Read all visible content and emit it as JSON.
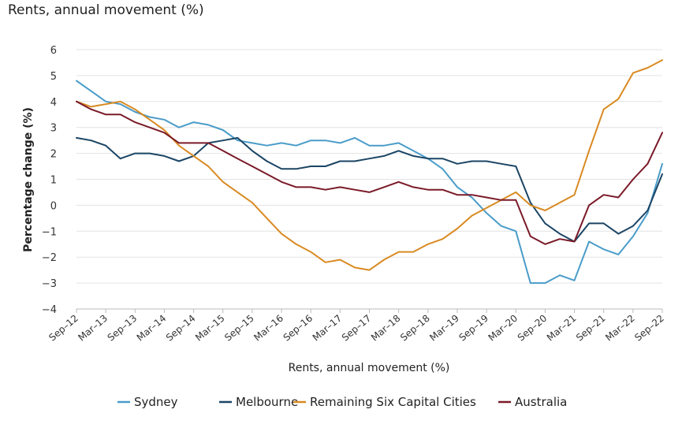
{
  "title": "Rents, annual movement (%)",
  "chart_data": {
    "type": "line",
    "title": "Rents, annual movement (%)",
    "xlabel": "Rents, annual movement (%)",
    "ylabel": "Percentage change (%)",
    "ylim": [
      -4,
      6
    ],
    "yticks": [
      6,
      5,
      4,
      3,
      2,
      1,
      0,
      -1,
      -2,
      -3,
      -4
    ],
    "grid": true,
    "legend_position": "bottom",
    "x": [
      "Sep-12",
      "Dec-12",
      "Mar-13",
      "Jun-13",
      "Sep-13",
      "Dec-13",
      "Mar-14",
      "Jun-14",
      "Sep-14",
      "Dec-14",
      "Mar-15",
      "Jun-15",
      "Sep-15",
      "Dec-15",
      "Mar-16",
      "Jun-16",
      "Sep-16",
      "Dec-16",
      "Mar-17",
      "Jun-17",
      "Sep-17",
      "Dec-17",
      "Mar-18",
      "Jun-18",
      "Sep-18",
      "Dec-18",
      "Mar-19",
      "Jun-19",
      "Sep-19",
      "Dec-19",
      "Mar-20",
      "Jun-20",
      "Sep-20",
      "Dec-20",
      "Mar-21",
      "Jun-21",
      "Sep-21",
      "Dec-21",
      "Mar-22",
      "Jun-22",
      "Sep-22"
    ],
    "xtick_labels": [
      "Sep–12",
      "Mar–13",
      "Sep–13",
      "Mar–14",
      "Sep–14",
      "Mar–15",
      "Sep–15",
      "Mar–16",
      "Sep–16",
      "Mar–17",
      "Sep–17",
      "Mar–18",
      "Sep–18",
      "Mar–19",
      "Sep–19",
      "Mar–20",
      "Sep–20",
      "Mar–21",
      "Sep–21",
      "Mar–22",
      "Sep–22"
    ],
    "series": [
      {
        "name": "Sydney",
        "color": "#4a9cc9",
        "values": [
          4.8,
          4.4,
          4.0,
          3.9,
          3.6,
          3.4,
          3.3,
          3.0,
          3.2,
          3.1,
          2.9,
          2.5,
          2.4,
          2.3,
          2.4,
          2.3,
          2.5,
          2.5,
          2.4,
          2.6,
          2.3,
          2.3,
          2.4,
          2.1,
          1.8,
          1.4,
          0.7,
          0.3,
          -0.3,
          -0.8,
          -1.0,
          -3.0,
          -3.0,
          -2.7,
          -2.9,
          -1.4,
          -1.7,
          -1.9,
          -1.2,
          -0.3,
          1.6
        ]
      },
      {
        "name": "Melbourne",
        "color": "#1b4565",
        "values": [
          2.6,
          2.5,
          2.3,
          1.8,
          2.0,
          2.0,
          1.9,
          1.7,
          1.9,
          2.4,
          2.5,
          2.6,
          2.1,
          1.7,
          1.4,
          1.4,
          1.5,
          1.5,
          1.7,
          1.7,
          1.8,
          1.9,
          2.1,
          1.9,
          1.8,
          1.8,
          1.6,
          1.7,
          1.7,
          1.6,
          1.5,
          0.1,
          -0.7,
          -1.1,
          -1.4,
          -0.7,
          -0.7,
          -1.1,
          -0.8,
          -0.2,
          1.2
        ]
      },
      {
        "name": "Remaining Six Capital Cities",
        "color": "#d98a22",
        "values": [
          4.0,
          3.8,
          3.9,
          4.0,
          3.7,
          3.3,
          2.9,
          2.3,
          1.9,
          1.5,
          0.9,
          0.5,
          0.1,
          -0.5,
          -1.1,
          -1.5,
          -1.8,
          -2.2,
          -2.1,
          -2.4,
          -2.5,
          -2.1,
          -1.8,
          -1.8,
          -1.5,
          -1.3,
          -0.9,
          -0.4,
          -0.1,
          0.2,
          0.5,
          0.0,
          -0.2,
          0.1,
          0.4,
          2.1,
          3.7,
          4.1,
          5.1,
          5.3,
          5.6
        ]
      },
      {
        "name": "Australia",
        "color": "#7a1a28",
        "values": [
          4.0,
          3.7,
          3.5,
          3.5,
          3.2,
          3.0,
          2.8,
          2.4,
          2.4,
          2.4,
          2.1,
          1.8,
          1.5,
          1.2,
          0.9,
          0.7,
          0.7,
          0.6,
          0.7,
          0.6,
          0.5,
          0.7,
          0.9,
          0.7,
          0.6,
          0.6,
          0.4,
          0.4,
          0.3,
          0.2,
          0.2,
          -1.2,
          -1.5,
          -1.3,
          -1.4,
          0.0,
          0.4,
          0.3,
          1.0,
          1.6,
          2.8
        ]
      }
    ]
  }
}
